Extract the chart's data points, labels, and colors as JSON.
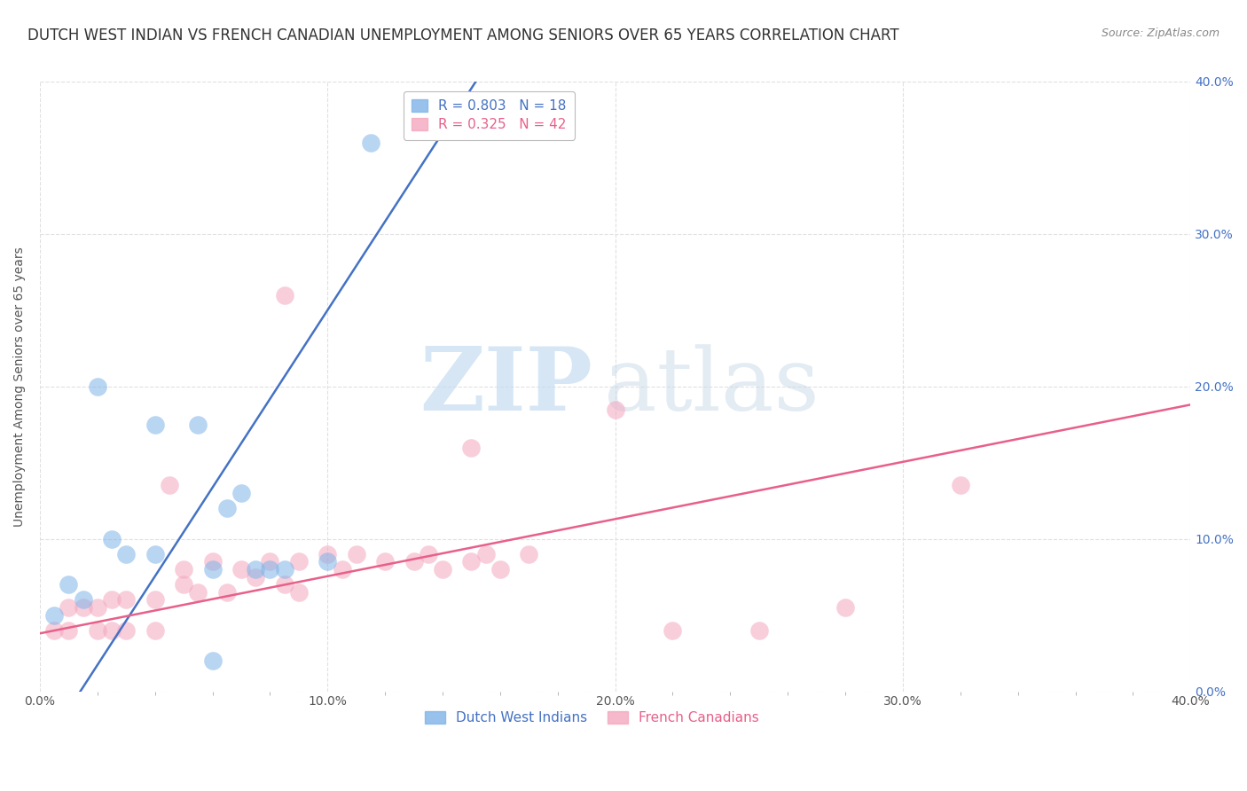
{
  "title": "DUTCH WEST INDIAN VS FRENCH CANADIAN UNEMPLOYMENT AMONG SENIORS OVER 65 YEARS CORRELATION CHART",
  "source": "Source: ZipAtlas.com",
  "ylabel": "Unemployment Among Seniors over 65 years",
  "xlim": [
    0.0,
    0.4
  ],
  "ylim": [
    0.0,
    0.4
  ],
  "watermark_zip": "ZIP",
  "watermark_atlas": "atlas",
  "blue_color": "#4472C4",
  "pink_color": "#E8608A",
  "blue_scatter_color": "#7EB3E8",
  "pink_scatter_color": "#F4A7BF",
  "blue_R": 0.803,
  "blue_N": 18,
  "pink_R": 0.325,
  "pink_N": 42,
  "blue_label": "Dutch West Indians",
  "pink_label": "French Canadians",
  "blue_scatter_x": [
    0.005,
    0.01,
    0.015,
    0.02,
    0.025,
    0.03,
    0.04,
    0.04,
    0.055,
    0.06,
    0.065,
    0.07,
    0.075,
    0.08,
    0.085,
    0.1,
    0.115,
    0.06
  ],
  "blue_scatter_y": [
    0.05,
    0.07,
    0.06,
    0.2,
    0.1,
    0.09,
    0.09,
    0.175,
    0.175,
    0.08,
    0.12,
    0.13,
    0.08,
    0.08,
    0.08,
    0.085,
    0.36,
    0.02
  ],
  "pink_scatter_x": [
    0.005,
    0.01,
    0.01,
    0.015,
    0.02,
    0.02,
    0.025,
    0.025,
    0.03,
    0.03,
    0.04,
    0.04,
    0.045,
    0.05,
    0.05,
    0.055,
    0.06,
    0.065,
    0.07,
    0.075,
    0.08,
    0.085,
    0.09,
    0.09,
    0.1,
    0.105,
    0.11,
    0.12,
    0.13,
    0.135,
    0.14,
    0.15,
    0.155,
    0.16,
    0.17,
    0.2,
    0.22,
    0.25,
    0.28,
    0.32,
    0.085,
    0.15
  ],
  "pink_scatter_y": [
    0.04,
    0.055,
    0.04,
    0.055,
    0.055,
    0.04,
    0.06,
    0.04,
    0.06,
    0.04,
    0.06,
    0.04,
    0.135,
    0.07,
    0.08,
    0.065,
    0.085,
    0.065,
    0.08,
    0.075,
    0.085,
    0.07,
    0.065,
    0.085,
    0.09,
    0.08,
    0.09,
    0.085,
    0.085,
    0.09,
    0.08,
    0.085,
    0.09,
    0.08,
    0.09,
    0.185,
    0.04,
    0.04,
    0.055,
    0.135,
    0.26,
    0.16
  ],
  "blue_line_x": [
    -0.01,
    0.155
  ],
  "blue_line_y": [
    -0.07,
    0.41
  ],
  "pink_line_x": [
    0.0,
    0.4
  ],
  "pink_line_y": [
    0.038,
    0.188
  ],
  "grid_color": "#E0E0E0",
  "background_color": "#FFFFFF",
  "title_fontsize": 12,
  "axis_label_fontsize": 10,
  "tick_fontsize": 10,
  "legend_fontsize": 11,
  "ytick_vals": [
    0.0,
    0.1,
    0.2,
    0.3,
    0.4
  ],
  "xtick_vals": [
    0.0,
    0.1,
    0.2,
    0.3,
    0.4
  ]
}
